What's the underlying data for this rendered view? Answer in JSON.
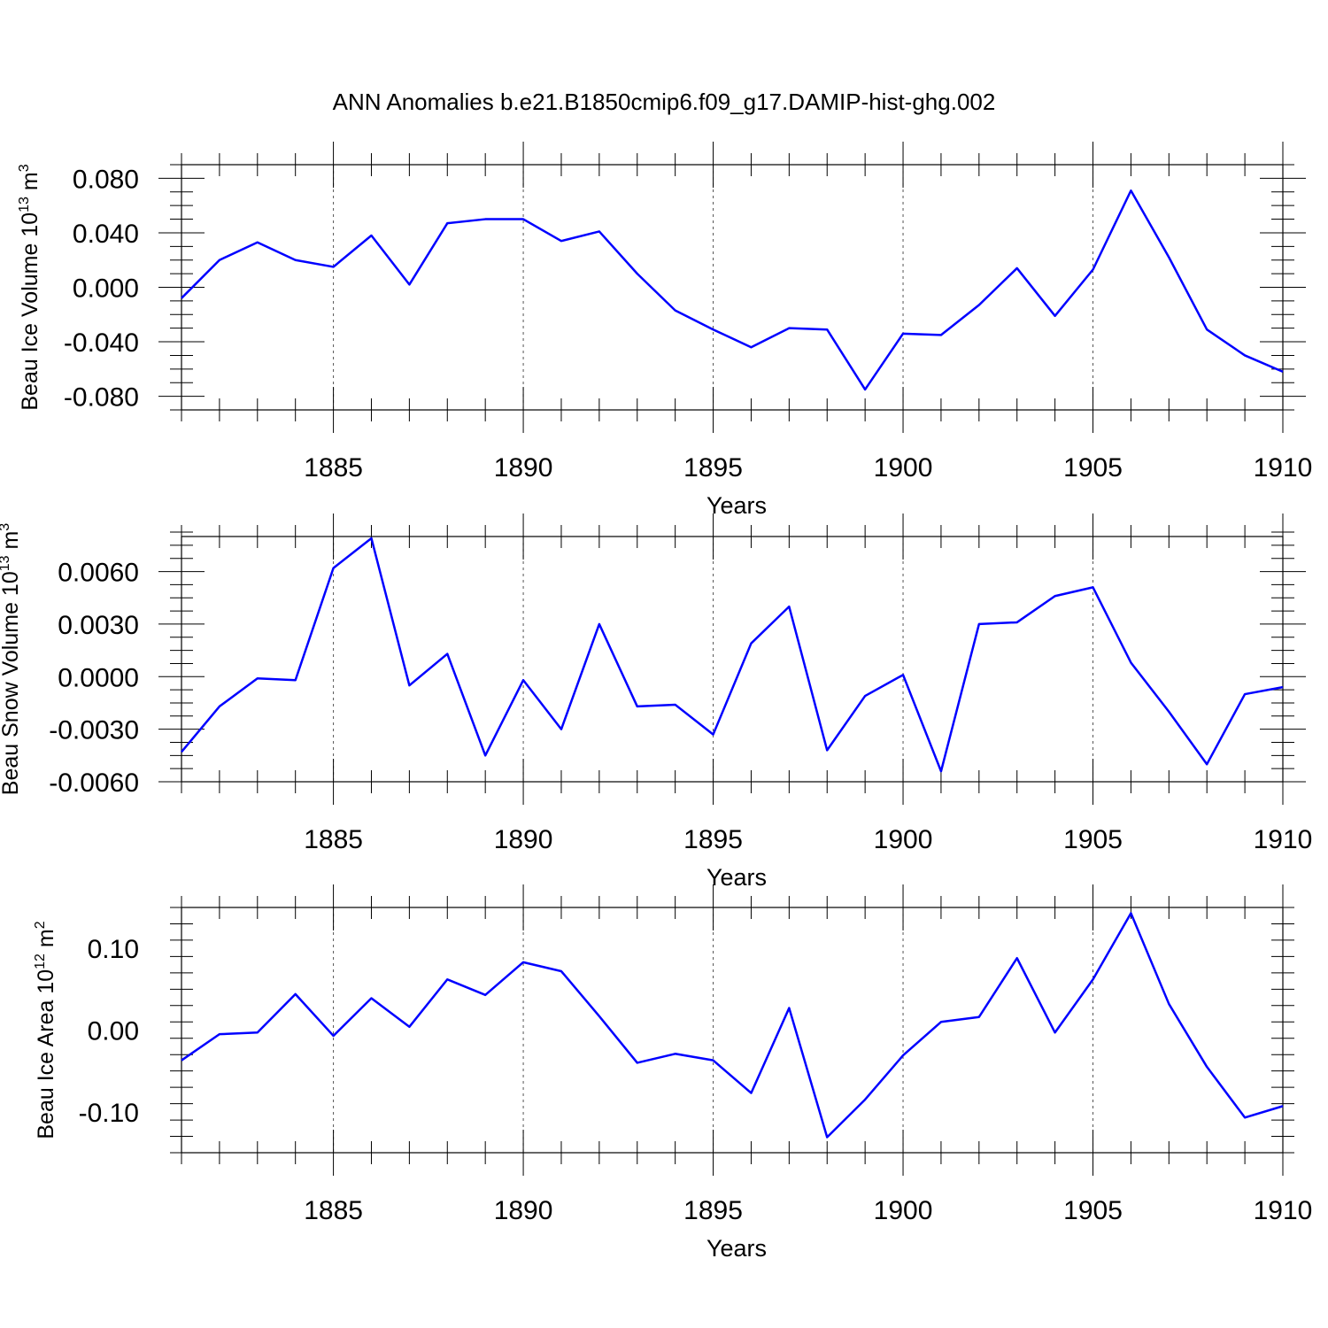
{
  "title": "ANN Anomalies b.e21.B1850cmip6.f09_g17.DAMIP-hist-ghg.002",
  "colors": {
    "line": "#0000ff",
    "frame": "#000000",
    "grid": "#555555"
  },
  "chart_data": [
    {
      "type": "line",
      "name": "ice-volume",
      "title": "",
      "xlabel": "Years",
      "ylabel": "Beau Ice Volume 10",
      "ylabel_exponent": "13",
      "ylabel_unit": "m",
      "ylabel_unit_exponent": "3",
      "xlim": [
        1881,
        1910
      ],
      "ylim": [
        -0.09,
        0.09
      ],
      "x_ticks": [
        1885,
        1890,
        1895,
        1900,
        1905,
        1910
      ],
      "x_tick_labels": [
        "1885",
        "1890",
        "1895",
        "1900",
        "1905",
        "1910"
      ],
      "x_minor_step": 1,
      "y_ticks": [
        -0.08,
        -0.04,
        0.0,
        0.04,
        0.08
      ],
      "y_tick_labels": [
        "-0.080",
        "-0.040",
        "0.000",
        "0.040",
        "0.080"
      ],
      "y_minor_step": 0.01,
      "grid": "vertical dashed at major x ticks",
      "x": [
        1881,
        1882,
        1883,
        1884,
        1885,
        1886,
        1887,
        1888,
        1889,
        1890,
        1891,
        1892,
        1893,
        1894,
        1895,
        1896,
        1897,
        1898,
        1899,
        1900,
        1901,
        1902,
        1903,
        1904,
        1905,
        1906,
        1907,
        1908,
        1909,
        1910
      ],
      "series": [
        {
          "name": "Beau Ice Volume",
          "values": [
            -0.008,
            0.02,
            0.033,
            0.02,
            0.015,
            0.038,
            0.002,
            0.047,
            0.05,
            0.05,
            0.034,
            0.041,
            0.01,
            -0.017,
            -0.031,
            -0.044,
            -0.03,
            -0.031,
            -0.075,
            -0.034,
            -0.035,
            -0.013,
            0.014,
            -0.021,
            0.013,
            0.071,
            0.022,
            -0.031,
            -0.05,
            -0.062
          ]
        }
      ]
    },
    {
      "type": "line",
      "name": "snow-volume",
      "title": "",
      "xlabel": "Years",
      "ylabel": "Beau Snow Volume 10",
      "ylabel_exponent": "13",
      "ylabel_unit": "m",
      "ylabel_unit_exponent": "3",
      "xlim": [
        1881,
        1910
      ],
      "ylim": [
        -0.006,
        0.008
      ],
      "x_ticks": [
        1885,
        1890,
        1895,
        1900,
        1905,
        1910
      ],
      "x_tick_labels": [
        "1885",
        "1890",
        "1895",
        "1900",
        "1905",
        "1910"
      ],
      "x_minor_step": 1,
      "y_ticks": [
        -0.006,
        -0.003,
        0.0,
        0.003,
        0.006
      ],
      "y_tick_labels": [
        "-0.0060",
        "-0.0030",
        "0.0000",
        "0.0030",
        "0.0060"
      ],
      "y_minor_step": 0.00075,
      "grid": "vertical dashed at major x ticks",
      "x": [
        1881,
        1882,
        1883,
        1884,
        1885,
        1886,
        1887,
        1888,
        1889,
        1890,
        1891,
        1892,
        1893,
        1894,
        1895,
        1896,
        1897,
        1898,
        1899,
        1900,
        1901,
        1902,
        1903,
        1904,
        1905,
        1906,
        1907,
        1908,
        1909,
        1910
      ],
      "series": [
        {
          "name": "Beau Snow Volume",
          "values": [
            -0.0043,
            -0.0017,
            -0.0001,
            -0.0002,
            0.0062,
            0.0079,
            -0.0005,
            0.0013,
            -0.0045,
            -0.0002,
            -0.003,
            0.003,
            -0.0017,
            -0.0016,
            -0.0033,
            0.0019,
            0.004,
            -0.0042,
            -0.0011,
            0.0001,
            -0.0054,
            0.003,
            0.0031,
            0.0046,
            0.0051,
            0.0008,
            -0.002,
            -0.005,
            -0.001,
            -0.0006
          ]
        }
      ]
    },
    {
      "type": "line",
      "name": "ice-area",
      "title": "",
      "xlabel": "Years",
      "ylabel": "Beau Ice Area 10",
      "ylabel_exponent": "12",
      "ylabel_unit": "m",
      "ylabel_unit_exponent": "2",
      "xlim": [
        1881,
        1910
      ],
      "ylim": [
        -0.15,
        0.15
      ],
      "x_ticks": [
        1885,
        1890,
        1895,
        1900,
        1905,
        1910
      ],
      "x_tick_labels": [
        "1885",
        "1890",
        "1895",
        "1900",
        "1905",
        "1910"
      ],
      "x_minor_step": 1,
      "y_ticks": [
        -0.1,
        0.0,
        0.1
      ],
      "y_tick_labels": [
        "-0.10",
        "0.00",
        "0.10"
      ],
      "y_minor_step": 0.02,
      "grid": "vertical dashed at major x ticks",
      "x": [
        1881,
        1882,
        1883,
        1884,
        1885,
        1886,
        1887,
        1888,
        1889,
        1890,
        1891,
        1892,
        1893,
        1894,
        1895,
        1896,
        1897,
        1898,
        1899,
        1900,
        1901,
        1902,
        1903,
        1904,
        1905,
        1906,
        1907,
        1908,
        1909,
        1910
      ],
      "series": [
        {
          "name": "Beau Ice Area",
          "values": [
            -0.037,
            -0.005,
            -0.003,
            0.044,
            -0.007,
            0.039,
            0.004,
            0.062,
            0.043,
            0.083,
            0.072,
            0.017,
            -0.04,
            -0.029,
            -0.037,
            -0.077,
            0.027,
            -0.131,
            -0.085,
            -0.031,
            0.01,
            0.016,
            0.088,
            -0.003,
            0.062,
            0.143,
            0.032,
            -0.045,
            -0.107,
            -0.093
          ]
        }
      ]
    }
  ]
}
